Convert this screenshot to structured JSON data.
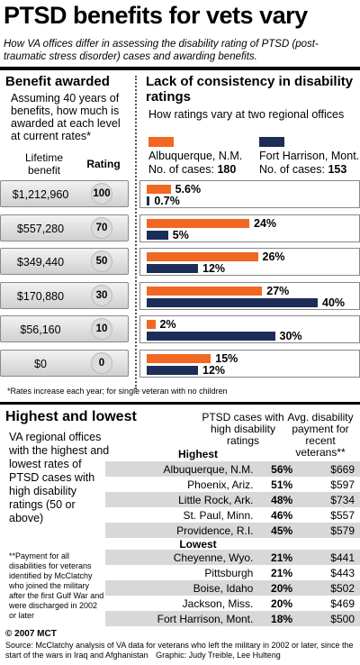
{
  "title": "PTSD benefits for vets vary",
  "subtitle": "How VA offices differ in assessing the disability rating of PTSD (post- traumatic stress disorder) cases and awarding benefits.",
  "left_section": {
    "heading": "Benefit awarded",
    "description": "Assuming 40 years of benefits, how much is awarded at each level at current rates*",
    "col_lifetime": "Lifetime benefit",
    "col_rating": "Rating"
  },
  "right_section": {
    "heading": "Lack of consistency in disability ratings",
    "description": "How ratings vary at two regional offices",
    "office1_name": "Albuquerque, N.M.",
    "office1_cases_label": "No. of cases:",
    "office1_cases": "180",
    "office2_name": "Fort Harrison, Mont.",
    "office2_cases_label": "No. of cases:",
    "office2_cases": "153"
  },
  "colors": {
    "albuquerque": "#f26722",
    "fort_harrison": "#1c2d57"
  },
  "chart_data": {
    "type": "bar",
    "orientation": "horizontal",
    "categories": [
      "100",
      "70",
      "50",
      "30",
      "10",
      "0"
    ],
    "lifetime_benefit": [
      "$1,212,960",
      "$557,280",
      "$349,440",
      "$170,880",
      "$56,160",
      "$0"
    ],
    "series": [
      {
        "name": "Albuquerque, N.M.",
        "values": [
          5.6,
          24,
          26,
          27,
          2,
          15
        ],
        "labels": [
          "5.6%",
          "24%",
          "26%",
          "27%",
          "2%",
          "15%"
        ]
      },
      {
        "name": "Fort Harrison, Mont.",
        "values": [
          0.7,
          5,
          12,
          40,
          30,
          12
        ],
        "labels": [
          "0.7%",
          "5%",
          "12%",
          "40%",
          "30%",
          "12%"
        ]
      }
    ],
    "xlim": [
      0,
      40
    ]
  },
  "rates_note": "*Rates increase each year; for single veteran with no children",
  "bottom": {
    "heading": "Highest and lowest",
    "description": "VA regional offices with the highest and lowest rates of PTSD cases with high disability ratings (50 or above)",
    "col_ptsd": "PTSD cases with high disability ratings",
    "col_payment": "Avg. disability payment for recent veterans**",
    "highest_label": "Highest",
    "lowest_label": "Lowest",
    "highest": [
      {
        "city": "Albuquerque, N.M.",
        "pct": "56%",
        "pay": "$669"
      },
      {
        "city": "Phoenix, Ariz.",
        "pct": "51%",
        "pay": "$597"
      },
      {
        "city": "Little Rock, Ark.",
        "pct": "48%",
        "pay": "$734"
      },
      {
        "city": "St. Paul, Minn.",
        "pct": "46%",
        "pay": "$557"
      },
      {
        "city": "Providence, R.I.",
        "pct": "45%",
        "pay": "$579"
      }
    ],
    "lowest": [
      {
        "city": "Cheyenne, Wyo.",
        "pct": "21%",
        "pay": "$441"
      },
      {
        "city": "Pittsburgh",
        "pct": "21%",
        "pay": "$443"
      },
      {
        "city": "Boise, Idaho",
        "pct": "20%",
        "pay": "$502"
      },
      {
        "city": "Jackson, Miss.",
        "pct": "20%",
        "pay": "$469"
      },
      {
        "city": "Fort Harrison, Mont.",
        "pct": "18%",
        "pay": "$500"
      }
    ],
    "payment_note": "**Payment for all disabilities for veterans identified by McClatchy who joined the military after the first Gulf War and were discharged in 2002 or later"
  },
  "credit": "© 2007 MCT",
  "source": "Source: McClatchy analysis of VA data for veterans who left the military in 2002 or later, since the start of the wars in Iraq and Afghanistan",
  "graphic_credit": "Graphic: Judy Treible, Lee Hulteng"
}
